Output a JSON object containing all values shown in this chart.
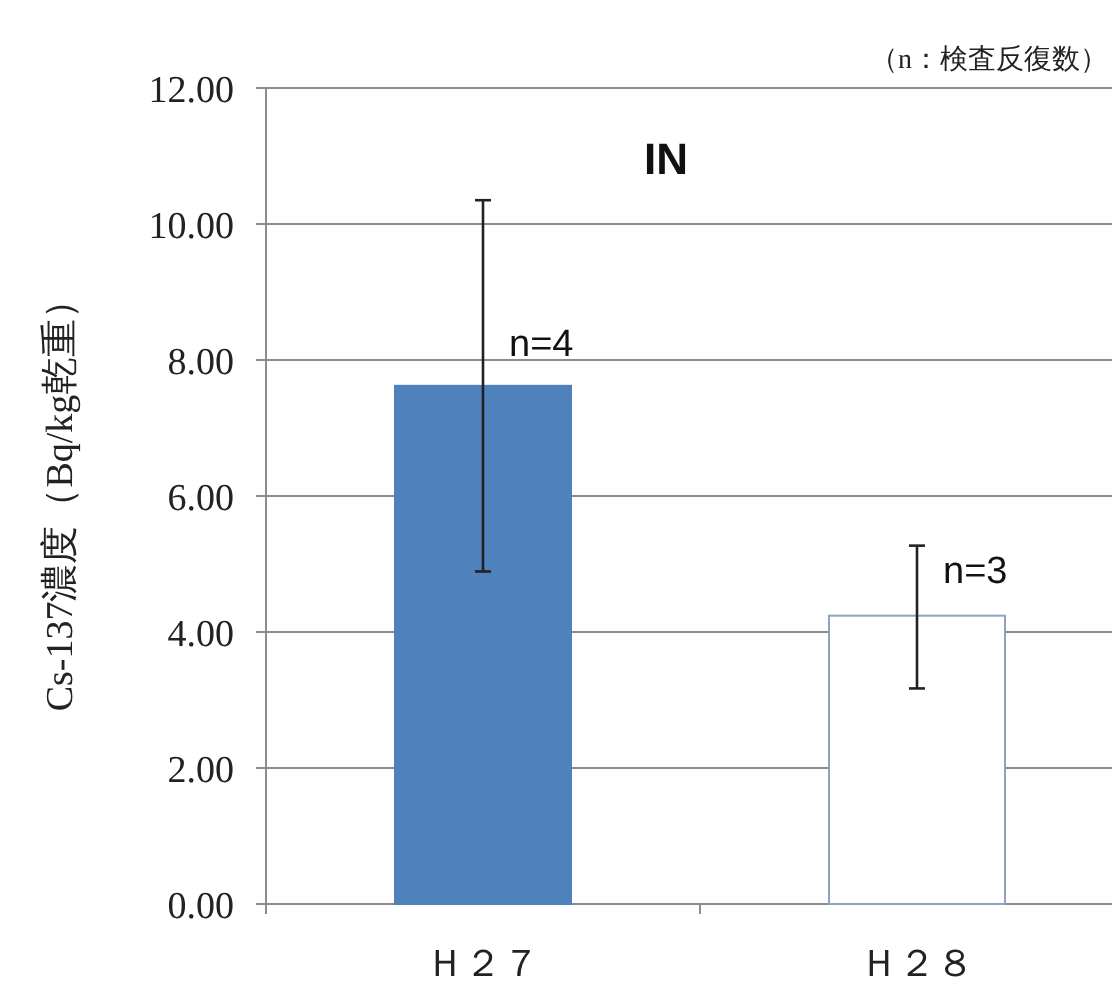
{
  "chart_data": {
    "type": "bar",
    "title": "IN",
    "ylabel": "Cs-137濃度（Bq/kg乾重）",
    "categories": [
      "Ｈ２７",
      "Ｈ２８"
    ],
    "values": [
      7.62,
      4.24
    ],
    "colors": [
      "#4f81bd",
      "#ffffff"
    ],
    "errors": [
      [
        4.89,
        10.35
      ],
      [
        3.17,
        5.27
      ]
    ],
    "ylim": [
      0,
      12
    ],
    "yticks": [
      {
        "value": 0,
        "label": "0.00"
      },
      {
        "value": 2,
        "label": "2.00"
      },
      {
        "value": 4,
        "label": "4.00"
      },
      {
        "value": 6,
        "label": "6.00"
      },
      {
        "value": 8,
        "label": "8.00"
      },
      {
        "value": 10,
        "label": "10.00"
      },
      {
        "value": 12,
        "label": "12.00"
      }
    ],
    "grid": "y",
    "annotations": [
      "（n：検査反復数）",
      {
        "text": "n=4",
        "x": "Ｈ２７",
        "y": 8.3
      },
      {
        "text": "n=3",
        "x": "Ｈ２８",
        "y": 4.95
      }
    ]
  }
}
